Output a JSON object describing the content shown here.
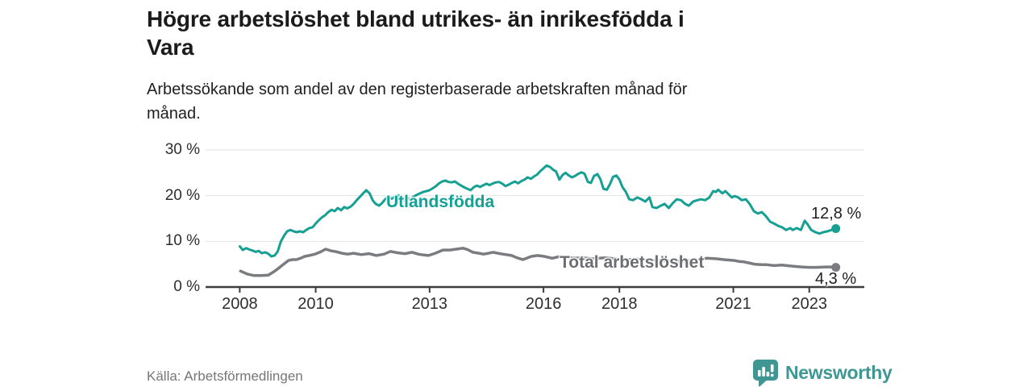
{
  "header": {
    "title_lines": [
      "Högre arbetslöshet bland utrikes- än inrikesfödda i",
      "Vara"
    ],
    "subtitle_lines": [
      "Arbetssökande som andel av den registerbaserade arbetskraften månad för",
      "månad."
    ]
  },
  "chart_data": {
    "type": "line",
    "title": "Högre arbetslöshet bland utrikes- än inrikesfödda i Vara",
    "subtitle": "Arbetssökande som andel av den registerbaserade arbetskraften månad för månad.",
    "xlabel": "",
    "ylabel": "",
    "grid": "horizontal",
    "legend_position": "inline-on-lines",
    "xlim": [
      2007.1,
      2024.45
    ],
    "ylim": [
      0,
      30
    ],
    "y_ticks": [
      {
        "v": 0,
        "label": "0 %"
      },
      {
        "v": 10,
        "label": "10 %"
      },
      {
        "v": 20,
        "label": "20 %"
      },
      {
        "v": 30,
        "label": "30 %"
      }
    ],
    "x_ticks": [
      {
        "v": 2008,
        "label": "2008"
      },
      {
        "v": 2010,
        "label": "2010"
      },
      {
        "v": 2013,
        "label": "2013"
      },
      {
        "v": 2016,
        "label": "2016"
      },
      {
        "v": 2018,
        "label": "2018"
      },
      {
        "v": 2021,
        "label": "2021"
      },
      {
        "v": 2023,
        "label": "2023"
      }
    ],
    "series": [
      {
        "name": "Utlandsfödda",
        "color": "#16a093",
        "end_label": "12,8 %",
        "end_value": 12.8,
        "x": [
          2008.0,
          2008.08,
          2008.17,
          2008.25,
          2008.33,
          2008.42,
          2008.5,
          2008.58,
          2008.67,
          2008.75,
          2008.83,
          2008.92,
          2009.0,
          2009.08,
          2009.17,
          2009.25,
          2009.33,
          2009.42,
          2009.5,
          2009.58,
          2009.67,
          2009.75,
          2009.83,
          2009.92,
          2010.0,
          2010.08,
          2010.17,
          2010.25,
          2010.33,
          2010.42,
          2010.5,
          2010.58,
          2010.67,
          2010.75,
          2010.83,
          2010.92,
          2011.0,
          2011.08,
          2011.17,
          2011.25,
          2011.33,
          2011.42,
          2011.5,
          2011.58,
          2011.67,
          2011.75,
          2011.83,
          2011.92,
          2012.0,
          2012.08,
          2012.17,
          2012.25,
          2012.33,
          2012.42,
          2012.5,
          2012.58,
          2012.67,
          2012.75,
          2012.83,
          2012.92,
          2013.0,
          2013.08,
          2013.17,
          2013.25,
          2013.33,
          2013.42,
          2013.5,
          2013.58,
          2013.67,
          2013.75,
          2013.83,
          2013.92,
          2014.0,
          2014.08,
          2014.17,
          2014.25,
          2014.33,
          2014.42,
          2014.5,
          2014.58,
          2014.67,
          2014.75,
          2014.83,
          2014.92,
          2015.0,
          2015.08,
          2015.17,
          2015.25,
          2015.33,
          2015.42,
          2015.5,
          2015.58,
          2015.67,
          2015.75,
          2015.83,
          2015.92,
          2016.0,
          2016.08,
          2016.17,
          2016.25,
          2016.33,
          2016.42,
          2016.5,
          2016.58,
          2016.67,
          2016.75,
          2016.83,
          2016.92,
          2017.0,
          2017.08,
          2017.17,
          2017.25,
          2017.33,
          2017.42,
          2017.5,
          2017.58,
          2017.67,
          2017.75,
          2017.83,
          2017.92,
          2018.0,
          2018.08,
          2018.17,
          2018.26,
          2018.36,
          2018.47,
          2018.58,
          2018.68,
          2018.79,
          2018.87,
          2018.98,
          2019.09,
          2019.19,
          2019.3,
          2019.41,
          2019.51,
          2019.62,
          2019.73,
          2019.83,
          2019.94,
          2020.05,
          2020.15,
          2020.26,
          2020.37,
          2020.47,
          2020.54,
          2020.6,
          2020.71,
          2020.79,
          2020.9,
          2020.96,
          2021.03,
          2021.13,
          2021.22,
          2021.33,
          2021.43,
          2021.54,
          2021.65,
          2021.75,
          2021.86,
          2021.97,
          2022.07,
          2022.18,
          2022.28,
          2022.39,
          2022.5,
          2022.56,
          2022.67,
          2022.78,
          2022.88,
          2022.95,
          2023.05,
          2023.16,
          2023.27,
          2023.37,
          2023.48,
          2023.59,
          2023.7
        ],
        "values": [
          8.9,
          8.1,
          8.5,
          8.2,
          8.0,
          7.7,
          7.9,
          7.4,
          7.6,
          7.3,
          6.7,
          6.9,
          7.8,
          9.9,
          11.3,
          12.2,
          12.5,
          12.2,
          12.0,
          12.2,
          12.0,
          12.5,
          12.9,
          13.1,
          13.9,
          14.6,
          15.3,
          15.7,
          16.4,
          16.9,
          16.6,
          17.3,
          16.8,
          17.5,
          17.2,
          17.6,
          18.2,
          19.0,
          19.8,
          20.5,
          21.2,
          20.5,
          19.0,
          18.2,
          17.8,
          18.4,
          19.2,
          19.8,
          19.3,
          19.7,
          20.1,
          19.6,
          19.0,
          19.4,
          19.2,
          19.8,
          20.2,
          20.5,
          20.8,
          21.0,
          21.2,
          21.6,
          22.1,
          22.7,
          23.1,
          23.3,
          23.0,
          22.9,
          23.1,
          22.6,
          22.2,
          21.8,
          21.5,
          21.2,
          21.9,
          22.2,
          21.9,
          22.3,
          22.6,
          22.3,
          22.7,
          22.9,
          23.0,
          22.6,
          22.1,
          22.4,
          22.8,
          23.1,
          22.7,
          23.2,
          23.5,
          24.0,
          23.7,
          24.2,
          24.6,
          25.4,
          26.0,
          26.6,
          26.3,
          25.7,
          25.3,
          23.5,
          24.5,
          25.0,
          24.4,
          24.0,
          24.3,
          24.8,
          25.1,
          24.8,
          23.0,
          22.8,
          24.3,
          24.7,
          23.6,
          21.5,
          21.3,
          22.5,
          24.1,
          24.4,
          23.5,
          21.9,
          20.8,
          19.2,
          19.0,
          19.6,
          19.2,
          18.7,
          19.6,
          17.5,
          17.3,
          17.8,
          18.2,
          17.3,
          18.4,
          19.2,
          19.0,
          18.2,
          17.8,
          18.7,
          19.0,
          19.2,
          19.0,
          19.6,
          21.0,
          20.8,
          21.3,
          20.5,
          21.0,
          20.1,
          19.6,
          19.9,
          19.6,
          19.0,
          19.2,
          18.2,
          16.6,
          16.1,
          16.4,
          15.5,
          14.3,
          13.9,
          13.4,
          13.1,
          12.5,
          12.9,
          12.5,
          12.9,
          12.5,
          14.5,
          13.8,
          12.5,
          12.0,
          11.7,
          12.0,
          12.2,
          12.5,
          12.8
        ]
      },
      {
        "name": "Total arbetslöshet",
        "color": "#7b7c80",
        "end_label": "4,3 %",
        "end_value": 4.3,
        "x": [
          2008.02,
          2008.21,
          2008.38,
          2008.55,
          2008.75,
          2008.87,
          2009.02,
          2009.17,
          2009.28,
          2009.39,
          2009.49,
          2009.6,
          2009.71,
          2009.83,
          2009.98,
          2010.13,
          2010.26,
          2010.41,
          2010.56,
          2010.69,
          2010.84,
          2011.0,
          2011.2,
          2011.4,
          2011.6,
          2011.8,
          2011.97,
          2012.15,
          2012.35,
          2012.54,
          2012.7,
          2012.85,
          2012.97,
          2013.15,
          2013.35,
          2013.54,
          2013.7,
          2013.88,
          2014.0,
          2014.14,
          2014.3,
          2014.42,
          2014.55,
          2014.67,
          2014.8,
          2014.93,
          2015.16,
          2015.3,
          2015.46,
          2015.68,
          2015.85,
          2016.02,
          2016.23,
          2016.44,
          2016.6,
          2016.8,
          2017.0,
          2017.3,
          2017.6,
          2017.9,
          2018.2,
          2018.5,
          2018.8,
          2019.1,
          2019.4,
          2019.7,
          2020.0,
          2020.3,
          2020.54,
          2020.75,
          2021.03,
          2021.15,
          2021.28,
          2021.45,
          2021.56,
          2021.75,
          2021.86,
          2022.07,
          2022.28,
          2022.5,
          2022.65,
          2022.8,
          2022.99,
          2023.2,
          2023.42,
          2023.55,
          2023.7
        ],
        "values": [
          3.5,
          2.8,
          2.5,
          2.5,
          2.6,
          3.2,
          4.1,
          5.1,
          5.8,
          6.0,
          6.0,
          6.3,
          6.7,
          6.9,
          7.2,
          7.7,
          8.3,
          7.9,
          7.7,
          7.4,
          7.2,
          7.4,
          7.1,
          7.3,
          6.9,
          7.2,
          7.8,
          7.5,
          7.3,
          7.6,
          7.2,
          7.0,
          6.9,
          7.4,
          8.1,
          8.1,
          8.3,
          8.5,
          8.2,
          7.6,
          7.4,
          7.2,
          7.4,
          7.6,
          7.4,
          7.2,
          6.9,
          6.4,
          6.0,
          6.7,
          6.9,
          6.7,
          6.3,
          6.7,
          6.5,
          6.3,
          6.4,
          6.2,
          6.4,
          6.2,
          6.0,
          6.1,
          5.9,
          5.8,
          5.6,
          5.7,
          5.9,
          6.3,
          6.2,
          6.0,
          5.8,
          5.6,
          5.5,
          5.2,
          5.0,
          4.9,
          4.9,
          4.7,
          4.8,
          4.6,
          4.5,
          4.4,
          4.3,
          4.3,
          4.4,
          4.4,
          4.3
        ]
      }
    ]
  },
  "footer": {
    "source": "Källa: Arbetsförmedlingen",
    "logo_text": "Newsworthy"
  },
  "colors": {
    "accent_teal": "#16a093",
    "line_gray": "#7b7c80",
    "label_gray": "#6d6e72",
    "grid": "#e2e2e2",
    "axis": "#3d3d3d",
    "logo": "#3f9793"
  }
}
